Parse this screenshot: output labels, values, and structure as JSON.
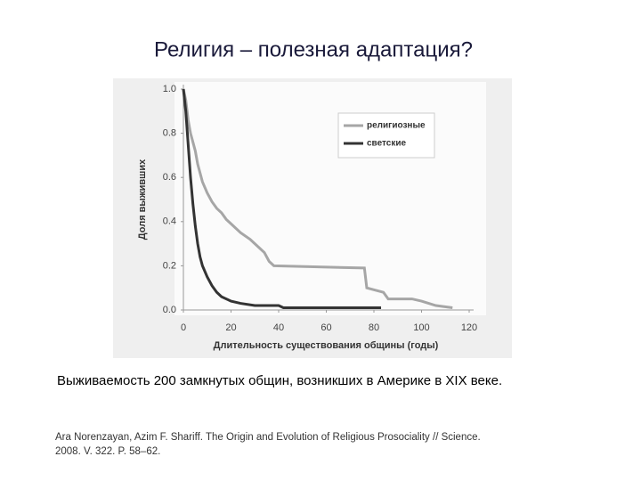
{
  "slide": {
    "title": "Религия – полезная адаптация?",
    "caption": "Выживаемость 200 замкнутых общин, возникших в Америке в XIX веке.",
    "citation_line1": "Ara Norenzayan, Azim F. Shariff. The Origin and Evolution of Religious Prosociality // Science.",
    "citation_line2": "2008. V. 322. P. 58–62."
  },
  "chart_data": {
    "type": "line",
    "xlabel": "Длительность существования общины (годы)",
    "ylabel": "Доля выживших",
    "xlim": [
      0,
      120
    ],
    "xticks": [
      0,
      20,
      40,
      60,
      80,
      100,
      120
    ],
    "ylim": [
      0,
      1
    ],
    "yticks": [
      {
        "value": 0,
        "label": "0.0"
      },
      0.2,
      0.4,
      0.6,
      0.8,
      {
        "value": 1,
        "label": "1.0"
      }
    ],
    "legend": "upper right",
    "series": [
      {
        "name": "религиозные",
        "color": "#a6a6a6",
        "x": [
          0,
          1,
          2,
          3,
          4,
          5,
          6,
          8,
          10,
          12,
          14,
          16,
          18,
          20,
          24,
          28,
          30,
          34,
          36,
          38,
          76,
          77,
          84,
          86,
          96,
          100,
          106,
          113
        ],
        "values": [
          1.0,
          0.95,
          0.86,
          0.8,
          0.76,
          0.72,
          0.66,
          0.58,
          0.53,
          0.49,
          0.46,
          0.44,
          0.41,
          0.39,
          0.35,
          0.32,
          0.3,
          0.26,
          0.22,
          0.2,
          0.19,
          0.1,
          0.08,
          0.05,
          0.05,
          0.04,
          0.02,
          0.01
        ]
      },
      {
        "name": "светские",
        "color": "#333333",
        "x": [
          0,
          1,
          2,
          3,
          4,
          5,
          6,
          7,
          8,
          10,
          12,
          14,
          16,
          20,
          24,
          30,
          40,
          42,
          83
        ],
        "values": [
          1.0,
          0.9,
          0.75,
          0.6,
          0.48,
          0.38,
          0.3,
          0.24,
          0.2,
          0.15,
          0.11,
          0.08,
          0.06,
          0.04,
          0.03,
          0.02,
          0.02,
          0.01,
          0.01
        ]
      }
    ]
  }
}
